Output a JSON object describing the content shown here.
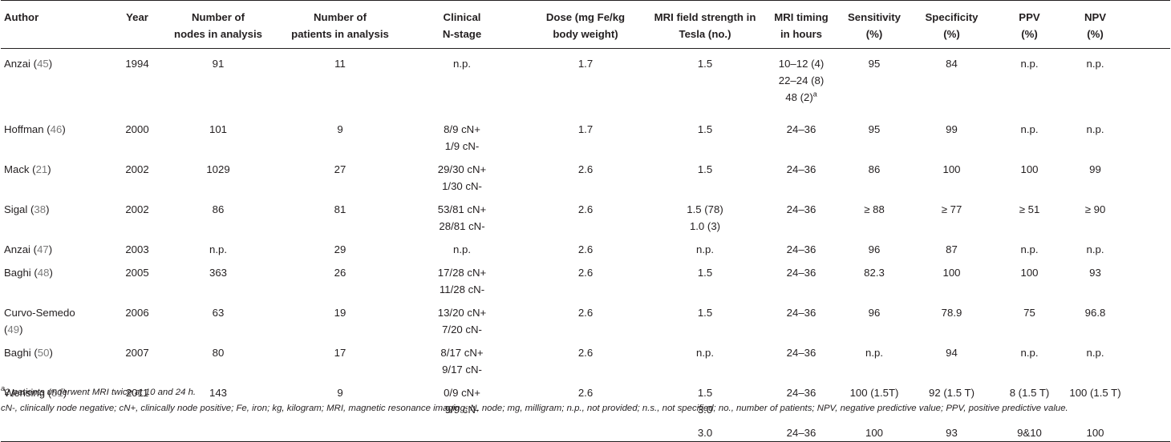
{
  "headers": [
    [
      "Author"
    ],
    [
      "Year"
    ],
    [
      "Number of",
      "nodes in analysis"
    ],
    [
      "Number of",
      "patients in analysis"
    ],
    [
      "Clinical",
      "N-stage"
    ],
    [
      "Dose (mg Fe/kg",
      "body weight)"
    ],
    [
      "MRI field strength in",
      "Tesla (no.)"
    ],
    [
      "MRI timing",
      "in hours"
    ],
    [
      "Sensitivity",
      "(%)"
    ],
    [
      "Specificity",
      "(%)"
    ],
    [
      "PPV",
      "(%)"
    ],
    [
      "NPV",
      "(%)"
    ]
  ],
  "rows": [
    {
      "author": "Anzai",
      "ref": "45",
      "year": "1994",
      "nodes": "91",
      "patients": "11",
      "nstage": [
        "n.p."
      ],
      "dose": "1.7",
      "field": [
        "1.5"
      ],
      "timing": [
        "10–12 (4)",
        "22–24 (8)",
        "48 (2)"
      ],
      "timing_sup": "a",
      "sens": "95",
      "spec": "84",
      "ppv": "n.p.",
      "npv": "n.p."
    },
    {
      "author": "Hoffman",
      "ref": "46",
      "year": "2000",
      "nodes": "101",
      "patients": "9",
      "nstage": [
        "8/9 cN+",
        "1/9 cN-"
      ],
      "dose": "1.7",
      "field": [
        "1.5"
      ],
      "timing": [
        "24–36"
      ],
      "sens": "95",
      "spec": "99",
      "ppv": "n.p.",
      "npv": "n.p."
    },
    {
      "author": "Mack",
      "ref": "21",
      "year": "2002",
      "nodes": "1029",
      "patients": "27",
      "nstage": [
        "29/30 cN+",
        "1/30 cN-"
      ],
      "dose": "2.6",
      "field": [
        "1.5"
      ],
      "timing": [
        "24–36"
      ],
      "sens": "86",
      "spec": "100",
      "ppv": "100",
      "npv": "99"
    },
    {
      "author": "Sigal",
      "ref": "38",
      "year": "2002",
      "nodes": "86",
      "patients": "81",
      "nstage": [
        "53/81 cN+",
        "28/81 cN-"
      ],
      "dose": "2.6",
      "field": [
        "1.5 (78)",
        "1.0 (3)"
      ],
      "timing": [
        "24–36"
      ],
      "sens": "≥ 88",
      "spec": "≥ 77",
      "ppv": "≥ 51",
      "npv": "≥ 90"
    },
    {
      "author": "Anzai",
      "ref": "47",
      "year": "2003",
      "nodes": "n.p.",
      "patients": "29",
      "nstage": [
        "n.p."
      ],
      "dose": "2.6",
      "field": [
        "n.p."
      ],
      "timing": [
        "24–36"
      ],
      "sens": "96",
      "spec": "87",
      "ppv": "n.p.",
      "npv": "n.p."
    },
    {
      "author": "Baghi",
      "ref": "48",
      "year": "2005",
      "nodes": "363",
      "patients": "26",
      "nstage": [
        "17/28 cN+",
        "11/28 cN-"
      ],
      "dose": "2.6",
      "field": [
        "1.5"
      ],
      "timing": [
        "24–36"
      ],
      "sens": "82.3",
      "spec": "100",
      "ppv": "100",
      "npv": "93"
    },
    {
      "author": "Curvo-Semedo",
      "ref": "49",
      "year": "2006",
      "nodes": "63",
      "patients": "19",
      "nstage": [
        "13/20 cN+",
        "7/20 cN-"
      ],
      "dose": "2.6",
      "field": [
        "1.5"
      ],
      "timing": [
        "24–36"
      ],
      "sens": "96",
      "spec": "78.9",
      "ppv": "75",
      "npv": "96.8"
    },
    {
      "author": "Baghi",
      "ref": "50",
      "year": "2007",
      "nodes": "80",
      "patients": "17",
      "nstage": [
        "8/17 cN+",
        "9/17 cN-"
      ],
      "dose": "2.6",
      "field": [
        "n.p."
      ],
      "timing": [
        "24–36"
      ],
      "sens": "n.p.",
      "spec": "94",
      "ppv": "n.p.",
      "npv": "n.p."
    },
    {
      "author": "Wensing",
      "ref": "51",
      "year": "2011",
      "nodes": "143",
      "patients": "9",
      "nstage": [
        "0/9 cN+",
        "9/9 cN-"
      ],
      "dose": "2.6",
      "field": [
        "1.5",
        "3.0"
      ],
      "timing": [
        ""
      ],
      "sens": "100 (1.5T)",
      "spec": "92 (1.5 T)",
      "ppv": "8 (1.5 T)",
      "npv": "100 (1.5 T)"
    },
    {
      "author": "",
      "ref": "",
      "year": "",
      "nodes": "",
      "patients": "",
      "nstage": [
        ""
      ],
      "dose": "",
      "field": [
        "3.0"
      ],
      "timing": [
        "24–36"
      ],
      "sens": "100",
      "spec": "93",
      "ppv": "9&10",
      "npv": "100"
    }
  ],
  "wensing_timing": "24–36",
  "footnote_a_sup": "a",
  "footnote_a_text": "2 patients underwent MRI twice at 10 and 24 h.",
  "abbreviations": "cN-, clinically node negative; cN+, clinically node positive; Fe, iron; kg, kilogram; MRI, magnetic resonance imaging; N, node; mg, milligram; n.p., not provided; n.s., not specified; no., number of patients; NPV, negative predictive value; PPV, positive predictive value."
}
